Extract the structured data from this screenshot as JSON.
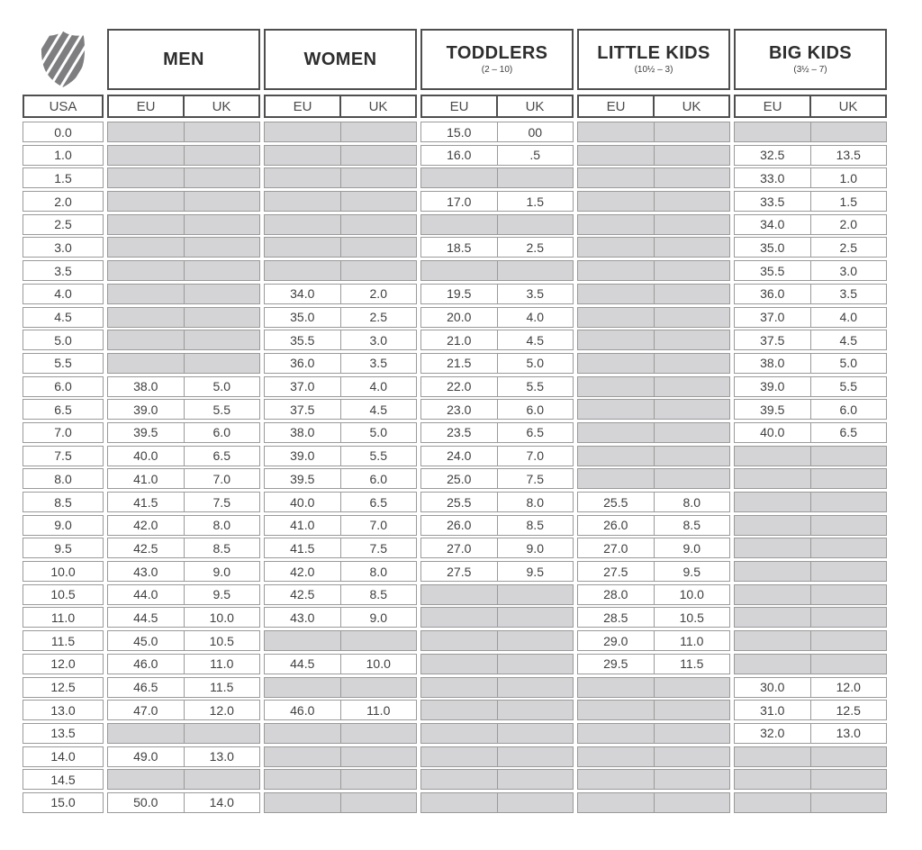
{
  "colors": {
    "empty_cell": "#d4d4d6",
    "cell_border": "#9a9a9a",
    "header_border": "#4f4f4f",
    "text": "#3f3f3f",
    "logo_gray": "#7e7e81"
  },
  "logo": {
    "name": "k-swiss-shield",
    "color": "#7e7e81"
  },
  "chart_data": {
    "type": "table",
    "usa_header": "USA",
    "groups": [
      {
        "id": "men",
        "label": "MEN",
        "sublabel": "",
        "columns": [
          "EU",
          "UK"
        ]
      },
      {
        "id": "women",
        "label": "WOMEN",
        "sublabel": "",
        "columns": [
          "EU",
          "UK"
        ]
      },
      {
        "id": "toddlers",
        "label": "TODDLERS",
        "sublabel": "(2 – 10)",
        "columns": [
          "EU",
          "UK"
        ]
      },
      {
        "id": "little_kids",
        "label": "LITTLE KIDS",
        "sublabel": "(10½ – 3)",
        "columns": [
          "EU",
          "UK"
        ]
      },
      {
        "id": "big_kids",
        "label": "BIG KIDS",
        "sublabel": "(3½ – 7)",
        "columns": [
          "EU",
          "UK"
        ]
      }
    ],
    "rows": [
      {
        "usa": "0.0",
        "men": [
          "",
          ""
        ],
        "women": [
          "",
          ""
        ],
        "toddlers": [
          "15.0",
          "00"
        ],
        "little_kids": [
          "",
          ""
        ],
        "big_kids": [
          "",
          ""
        ]
      },
      {
        "usa": "1.0",
        "men": [
          "",
          ""
        ],
        "women": [
          "",
          ""
        ],
        "toddlers": [
          "16.0",
          ".5"
        ],
        "little_kids": [
          "",
          ""
        ],
        "big_kids": [
          "32.5",
          "13.5"
        ]
      },
      {
        "usa": "1.5",
        "men": [
          "",
          ""
        ],
        "women": [
          "",
          ""
        ],
        "toddlers": [
          "",
          ""
        ],
        "little_kids": [
          "",
          ""
        ],
        "big_kids": [
          "33.0",
          "1.0"
        ]
      },
      {
        "usa": "2.0",
        "men": [
          "",
          ""
        ],
        "women": [
          "",
          ""
        ],
        "toddlers": [
          "17.0",
          "1.5"
        ],
        "little_kids": [
          "",
          ""
        ],
        "big_kids": [
          "33.5",
          "1.5"
        ]
      },
      {
        "usa": "2.5",
        "men": [
          "",
          ""
        ],
        "women": [
          "",
          ""
        ],
        "toddlers": [
          "",
          ""
        ],
        "little_kids": [
          "",
          ""
        ],
        "big_kids": [
          "34.0",
          "2.0"
        ]
      },
      {
        "usa": "3.0",
        "men": [
          "",
          ""
        ],
        "women": [
          "",
          ""
        ],
        "toddlers": [
          "18.5",
          "2.5"
        ],
        "little_kids": [
          "",
          ""
        ],
        "big_kids": [
          "35.0",
          "2.5"
        ]
      },
      {
        "usa": "3.5",
        "men": [
          "",
          ""
        ],
        "women": [
          "",
          ""
        ],
        "toddlers": [
          "",
          ""
        ],
        "little_kids": [
          "",
          ""
        ],
        "big_kids": [
          "35.5",
          "3.0"
        ]
      },
      {
        "usa": "4.0",
        "men": [
          "",
          ""
        ],
        "women": [
          "34.0",
          "2.0"
        ],
        "toddlers": [
          "19.5",
          "3.5"
        ],
        "little_kids": [
          "",
          ""
        ],
        "big_kids": [
          "36.0",
          "3.5"
        ]
      },
      {
        "usa": "4.5",
        "men": [
          "",
          ""
        ],
        "women": [
          "35.0",
          "2.5"
        ],
        "toddlers": [
          "20.0",
          "4.0"
        ],
        "little_kids": [
          "",
          ""
        ],
        "big_kids": [
          "37.0",
          "4.0"
        ]
      },
      {
        "usa": "5.0",
        "men": [
          "",
          ""
        ],
        "women": [
          "35.5",
          "3.0"
        ],
        "toddlers": [
          "21.0",
          "4.5"
        ],
        "little_kids": [
          "",
          ""
        ],
        "big_kids": [
          "37.5",
          "4.5"
        ]
      },
      {
        "usa": "5.5",
        "men": [
          "",
          ""
        ],
        "women": [
          "36.0",
          "3.5"
        ],
        "toddlers": [
          "21.5",
          "5.0"
        ],
        "little_kids": [
          "",
          ""
        ],
        "big_kids": [
          "38.0",
          "5.0"
        ]
      },
      {
        "usa": "6.0",
        "men": [
          "38.0",
          "5.0"
        ],
        "women": [
          "37.0",
          "4.0"
        ],
        "toddlers": [
          "22.0",
          "5.5"
        ],
        "little_kids": [
          "",
          ""
        ],
        "big_kids": [
          "39.0",
          "5.5"
        ]
      },
      {
        "usa": "6.5",
        "men": [
          "39.0",
          "5.5"
        ],
        "women": [
          "37.5",
          "4.5"
        ],
        "toddlers": [
          "23.0",
          "6.0"
        ],
        "little_kids": [
          "",
          ""
        ],
        "big_kids": [
          "39.5",
          "6.0"
        ]
      },
      {
        "usa": "7.0",
        "men": [
          "39.5",
          "6.0"
        ],
        "women": [
          "38.0",
          "5.0"
        ],
        "toddlers": [
          "23.5",
          "6.5"
        ],
        "little_kids": [
          "",
          ""
        ],
        "big_kids": [
          "40.0",
          "6.5"
        ]
      },
      {
        "usa": "7.5",
        "men": [
          "40.0",
          "6.5"
        ],
        "women": [
          "39.0",
          "5.5"
        ],
        "toddlers": [
          "24.0",
          "7.0"
        ],
        "little_kids": [
          "",
          ""
        ],
        "big_kids": [
          "",
          ""
        ]
      },
      {
        "usa": "8.0",
        "men": [
          "41.0",
          "7.0"
        ],
        "women": [
          "39.5",
          "6.0"
        ],
        "toddlers": [
          "25.0",
          "7.5"
        ],
        "little_kids": [
          "",
          ""
        ],
        "big_kids": [
          "",
          ""
        ]
      },
      {
        "usa": "8.5",
        "men": [
          "41.5",
          "7.5"
        ],
        "women": [
          "40.0",
          "6.5"
        ],
        "toddlers": [
          "25.5",
          "8.0"
        ],
        "little_kids": [
          "25.5",
          "8.0"
        ],
        "big_kids": [
          "",
          ""
        ]
      },
      {
        "usa": "9.0",
        "men": [
          "42.0",
          "8.0"
        ],
        "women": [
          "41.0",
          "7.0"
        ],
        "toddlers": [
          "26.0",
          "8.5"
        ],
        "little_kids": [
          "26.0",
          "8.5"
        ],
        "big_kids": [
          "",
          ""
        ]
      },
      {
        "usa": "9.5",
        "men": [
          "42.5",
          "8.5"
        ],
        "women": [
          "41.5",
          "7.5"
        ],
        "toddlers": [
          "27.0",
          "9.0"
        ],
        "little_kids": [
          "27.0",
          "9.0"
        ],
        "big_kids": [
          "",
          ""
        ]
      },
      {
        "usa": "10.0",
        "men": [
          "43.0",
          "9.0"
        ],
        "women": [
          "42.0",
          "8.0"
        ],
        "toddlers": [
          "27.5",
          "9.5"
        ],
        "little_kids": [
          "27.5",
          "9.5"
        ],
        "big_kids": [
          "",
          ""
        ]
      },
      {
        "usa": "10.5",
        "men": [
          "44.0",
          "9.5"
        ],
        "women": [
          "42.5",
          "8.5"
        ],
        "toddlers": [
          "",
          ""
        ],
        "little_kids": [
          "28.0",
          "10.0"
        ],
        "big_kids": [
          "",
          ""
        ]
      },
      {
        "usa": "11.0",
        "men": [
          "44.5",
          "10.0"
        ],
        "women": [
          "43.0",
          "9.0"
        ],
        "toddlers": [
          "",
          ""
        ],
        "little_kids": [
          "28.5",
          "10.5"
        ],
        "big_kids": [
          "",
          ""
        ]
      },
      {
        "usa": "11.5",
        "men": [
          "45.0",
          "10.5"
        ],
        "women": [
          "",
          ""
        ],
        "toddlers": [
          "",
          ""
        ],
        "little_kids": [
          "29.0",
          "11.0"
        ],
        "big_kids": [
          "",
          ""
        ]
      },
      {
        "usa": "12.0",
        "men": [
          "46.0",
          "11.0"
        ],
        "women": [
          "44.5",
          "10.0"
        ],
        "toddlers": [
          "",
          ""
        ],
        "little_kids": [
          "29.5",
          "11.5"
        ],
        "big_kids": [
          "",
          ""
        ]
      },
      {
        "usa": "12.5",
        "men": [
          "46.5",
          "11.5"
        ],
        "women": [
          "",
          ""
        ],
        "toddlers": [
          "",
          ""
        ],
        "little_kids": [
          "",
          ""
        ],
        "big_kids": [
          "30.0",
          "12.0"
        ]
      },
      {
        "usa": "13.0",
        "men": [
          "47.0",
          "12.0"
        ],
        "women": [
          "46.0",
          "11.0"
        ],
        "toddlers": [
          "",
          ""
        ],
        "little_kids": [
          "",
          ""
        ],
        "big_kids": [
          "31.0",
          "12.5"
        ]
      },
      {
        "usa": "13.5",
        "men": [
          "",
          ""
        ],
        "women": [
          "",
          ""
        ],
        "toddlers": [
          "",
          ""
        ],
        "little_kids": [
          "",
          ""
        ],
        "big_kids": [
          "32.0",
          "13.0"
        ]
      },
      {
        "usa": "14.0",
        "men": [
          "49.0",
          "13.0"
        ],
        "women": [
          "",
          ""
        ],
        "toddlers": [
          "",
          ""
        ],
        "little_kids": [
          "",
          ""
        ],
        "big_kids": [
          "",
          ""
        ]
      },
      {
        "usa": "14.5",
        "men": [
          "",
          ""
        ],
        "women": [
          "",
          ""
        ],
        "toddlers": [
          "",
          ""
        ],
        "little_kids": [
          "",
          ""
        ],
        "big_kids": [
          "",
          ""
        ]
      },
      {
        "usa": "15.0",
        "men": [
          "50.0",
          "14.0"
        ],
        "women": [
          "",
          ""
        ],
        "toddlers": [
          "",
          ""
        ],
        "little_kids": [
          "",
          ""
        ],
        "big_kids": [
          "",
          ""
        ]
      }
    ]
  }
}
